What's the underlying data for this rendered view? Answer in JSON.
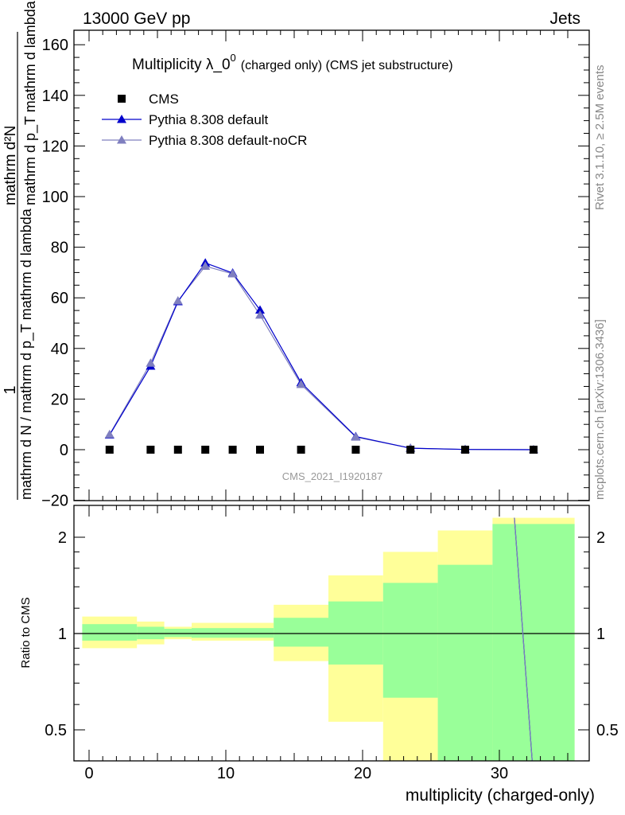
{
  "header": {
    "left": "13000 GeV pp",
    "right": "Jets"
  },
  "side_text": {
    "rivet": "Rivet 3.1.10, ≥ 2.5M events",
    "mcplots": "mcplots.cern.ch [arXiv:1306.3436]"
  },
  "watermark": "CMS_2021_I1920187",
  "title": {
    "main": "Multiplicity λ_0",
    "superscript": "0",
    "suffix": "(charged only) (CMS jet substructure)"
  },
  "colors": {
    "data": "#000000",
    "pythia_default": "#0000cc",
    "pythia_nocr": "#7f7fbf",
    "band_inner": "#99ff99",
    "band_outer": "#ffff99"
  },
  "chart_data": [
    {
      "type": "line",
      "panel": "main",
      "ylabel_parts": [
        "1",
        "mathrm d N / mathrm d p_T mathrm d lambda",
        "mathrm d²N",
        "mathrm d p_T mathrm d lambda"
      ],
      "xlim": [
        -1,
        36
      ],
      "ylim": [
        -20,
        166
      ],
      "yticks": [
        -20,
        0,
        20,
        40,
        60,
        80,
        100,
        120,
        140,
        160
      ],
      "xticks": [
        0,
        10,
        20,
        30
      ],
      "legend_position": "top-left",
      "series": [
        {
          "name": "CMS",
          "marker": "square",
          "x": [
            1.5,
            4.5,
            6.5,
            8.5,
            10.5,
            12.5,
            15.5,
            19.5,
            23.5,
            27.5,
            32.5
          ],
          "y": [
            0,
            0,
            0,
            0,
            0,
            0,
            0,
            0,
            0,
            0,
            0
          ]
        },
        {
          "name": "Pythia 8.308 default",
          "marker": "triangle",
          "x": [
            1.5,
            4.5,
            6.5,
            8.5,
            10.5,
            12.5,
            15.5,
            19.5,
            23.5,
            27.5,
            32.5
          ],
          "y": [
            5.8,
            33.0,
            58.5,
            73.8,
            69.8,
            55.2,
            26.5,
            5.2,
            0.6,
            0.1,
            0.0
          ]
        },
        {
          "name": "Pythia 8.308 default-noCR",
          "marker": "triangle",
          "x": [
            1.5,
            4.5,
            6.5,
            8.5,
            10.5,
            12.5,
            15.5,
            19.5,
            23.5,
            27.5,
            32.5
          ],
          "y": [
            6.0,
            34.2,
            58.8,
            72.5,
            69.5,
            53.2,
            25.8,
            5.0,
            0.6,
            0.1,
            0.0
          ]
        }
      ]
    },
    {
      "type": "area",
      "panel": "ratio",
      "ylabel": "Ratio to CMS",
      "xlabel": "multiplicity (charged-only)",
      "xlim": [
        -1,
        36
      ],
      "ylim": [
        0.35,
        2.3
      ],
      "yscale": "log",
      "ytick_labels": [
        "0.5",
        "1",
        "2"
      ],
      "yticks": [
        0.5,
        1,
        2
      ],
      "xtick_labels": [
        "0",
        "10",
        "20",
        "30"
      ],
      "xticks": [
        0,
        10,
        20,
        30
      ],
      "bins": [
        {
          "lo": -0.5,
          "hi": 3.5,
          "inner": [
            0.95,
            1.07
          ],
          "outer": [
            0.9,
            1.13
          ]
        },
        {
          "lo": 3.5,
          "hi": 5.5,
          "inner": [
            0.96,
            1.05
          ],
          "outer": [
            0.925,
            1.09
          ]
        },
        {
          "lo": 5.5,
          "hi": 7.5,
          "inner": [
            0.975,
            1.035
          ],
          "outer": [
            0.96,
            1.05
          ]
        },
        {
          "lo": 7.5,
          "hi": 13.5,
          "inner": [
            0.97,
            1.04
          ],
          "outer": [
            0.95,
            1.08
          ]
        },
        {
          "lo": 13.5,
          "hi": 17.5,
          "inner": [
            0.91,
            1.12
          ],
          "outer": [
            0.82,
            1.23
          ]
        },
        {
          "lo": 17.5,
          "hi": 21.5,
          "inner": [
            0.8,
            1.26
          ],
          "outer": [
            0.53,
            1.52
          ]
        },
        {
          "lo": 21.5,
          "hi": 25.5,
          "inner": [
            0.63,
            1.44
          ],
          "outer": [
            0.35,
            1.8
          ]
        },
        {
          "lo": 25.5,
          "hi": 29.5,
          "inner": [
            0.35,
            1.64
          ],
          "outer": [
            0.35,
            2.1
          ]
        },
        {
          "lo": 29.5,
          "hi": 35.5,
          "inner": [
            0.35,
            2.2
          ],
          "outer": [
            0.35,
            2.3
          ]
        }
      ],
      "series": [
        {
          "name": "Pythia 8.308 default",
          "x": [
            31.1,
            32.4
          ],
          "y": [
            2.3,
            0.35
          ]
        },
        {
          "name": "Pythia 8.308 default-noCR",
          "x": [
            31.1,
            32.4
          ],
          "y": [
            2.3,
            0.35
          ]
        }
      ]
    }
  ]
}
